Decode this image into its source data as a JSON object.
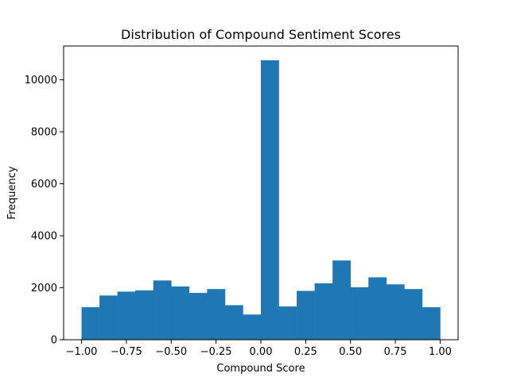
{
  "chart_data": {
    "type": "bar",
    "title": "Distribution of Compound Sentiment Scores",
    "xlabel": "Compound Score",
    "ylabel": "Frequency",
    "xlim": [
      -1.1,
      1.1
    ],
    "ylim": [
      0,
      11300
    ],
    "bin_edges": [
      -1.0,
      -0.9,
      -0.8,
      -0.7,
      -0.6,
      -0.5,
      -0.4,
      -0.3,
      -0.2,
      -0.1,
      0.0,
      0.1,
      0.2,
      0.3,
      0.4,
      0.5,
      0.6,
      0.7,
      0.8,
      0.9,
      1.0
    ],
    "values": [
      1250,
      1700,
      1850,
      1900,
      2280,
      2050,
      1800,
      1950,
      1330,
      970,
      10750,
      1280,
      1880,
      2170,
      3050,
      2020,
      2400,
      2130,
      1950,
      1250
    ],
    "x_ticks": [
      -1.0,
      -0.75,
      -0.5,
      -0.25,
      0.0,
      0.25,
      0.5,
      0.75,
      1.0
    ],
    "x_tick_labels": [
      "−1.00",
      "−0.75",
      "−0.50",
      "−0.25",
      "0.00",
      "0.25",
      "0.50",
      "0.75",
      "1.00"
    ],
    "y_ticks": [
      0,
      2000,
      4000,
      6000,
      8000,
      10000
    ],
    "y_tick_labels": [
      "0",
      "2000",
      "4000",
      "6000",
      "8000",
      "10000"
    ],
    "bar_color": "#1f77b4",
    "grid": false,
    "legend": false
  }
}
